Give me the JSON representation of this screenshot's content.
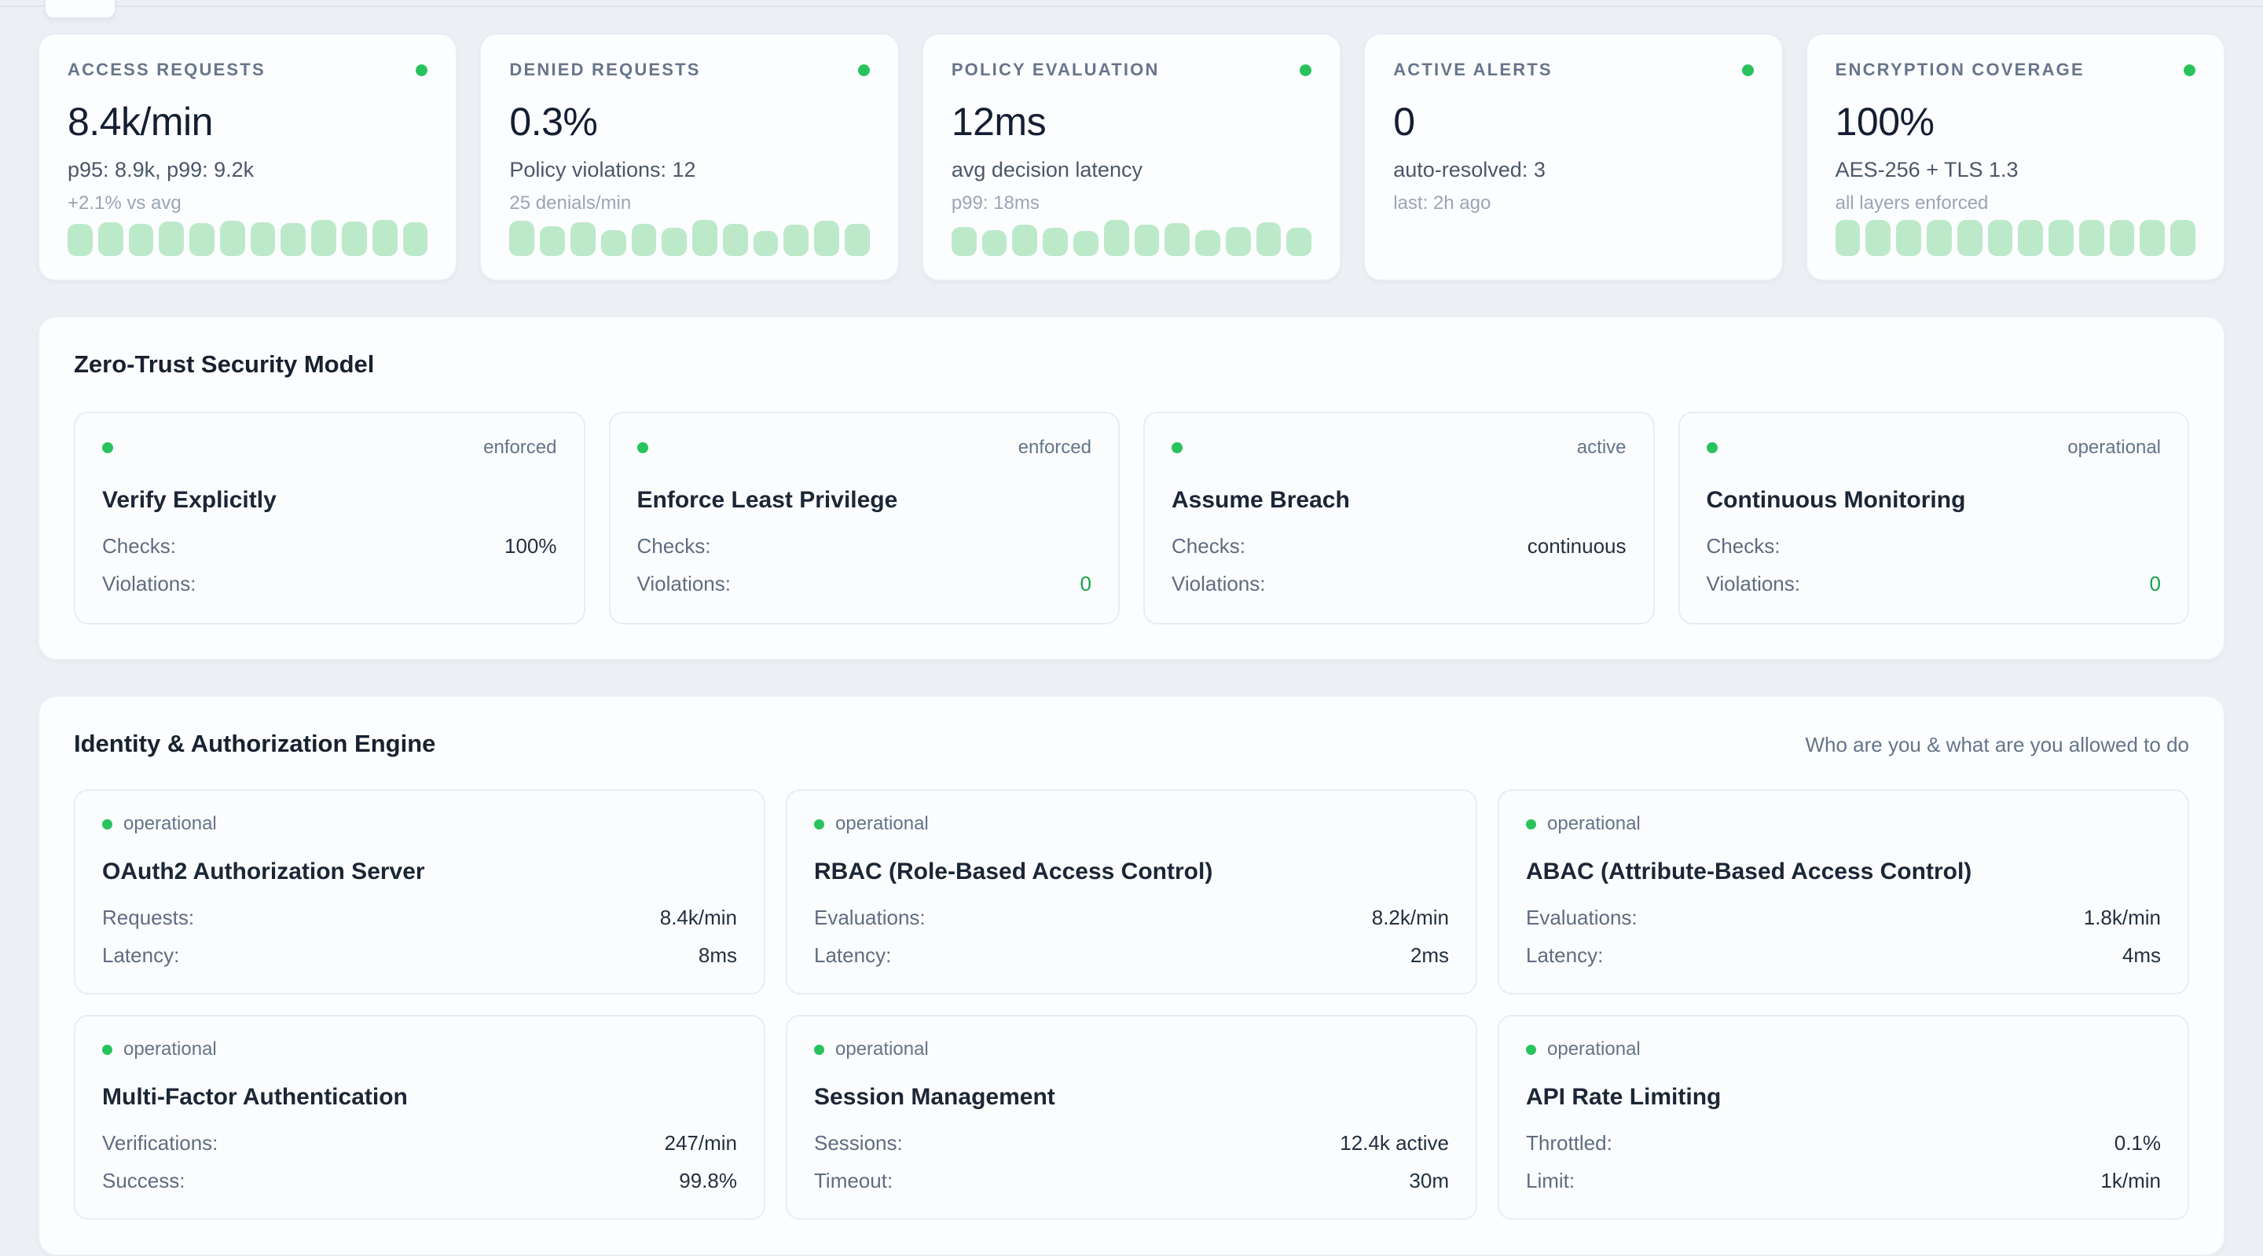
{
  "colors": {
    "page_background": "#edeff4",
    "card_background": "#fcfdfe",
    "accent_green_dot": "#28c35d",
    "sparkline_bar_green": "#bde9cb",
    "value_green": "#16a34a"
  },
  "kpi_cards": [
    {
      "label": "ACCESS REQUESTS",
      "value": "8.4k/min",
      "detail": "p95: 8.9k, p99: 9.2k",
      "sub": "+2.1% vs avg",
      "bars": [
        90,
        93,
        89,
        95,
        91,
        97,
        93,
        91,
        99,
        96,
        100,
        93
      ]
    },
    {
      "label": "DENIED REQUESTS",
      "value": "0.3%",
      "detail": "Policy violations: 12",
      "sub": "25 denials/min",
      "bars": [
        97,
        83,
        93,
        72,
        90,
        79,
        100,
        90,
        69,
        86,
        97,
        90
      ]
    },
    {
      "label": "POLICY EVALUATION",
      "value": "12ms",
      "detail": "avg decision latency",
      "sub": "p99: 18ms",
      "bars": [
        81,
        72,
        88,
        78,
        69,
        100,
        88,
        91,
        72,
        81,
        94,
        78
      ]
    },
    {
      "label": "ACTIVE ALERTS",
      "value": "0",
      "detail": "auto-resolved: 3",
      "sub": "last: 2h ago",
      "bars": []
    },
    {
      "label": "ENCRYPTION COVERAGE",
      "value": "100%",
      "detail": "AES-256 + TLS 1.3",
      "sub": "all layers enforced",
      "bars": [
        100,
        100,
        100,
        100,
        100,
        100,
        100,
        100,
        100,
        100,
        100,
        100
      ]
    }
  ],
  "zero_trust": {
    "title": "Zero-Trust Security Model",
    "cards": [
      {
        "title": "Verify Explicitly",
        "status": "enforced",
        "rows": [
          {
            "label": "Checks:",
            "value": "100%",
            "green": false
          },
          {
            "label": "Violations:",
            "value": "",
            "green": false
          }
        ]
      },
      {
        "title": "Enforce Least Privilege",
        "status": "enforced",
        "rows": [
          {
            "label": "Checks:",
            "value": "",
            "green": false
          },
          {
            "label": "Violations:",
            "value": "0",
            "green": true
          }
        ]
      },
      {
        "title": "Assume Breach",
        "status": "active",
        "rows": [
          {
            "label": "Checks:",
            "value": "continuous",
            "green": false
          },
          {
            "label": "Violations:",
            "value": "",
            "green": false
          }
        ]
      },
      {
        "title": "Continuous Monitoring",
        "status": "operational",
        "rows": [
          {
            "label": "Checks:",
            "value": "",
            "green": false
          },
          {
            "label": "Violations:",
            "value": "0",
            "green": true
          }
        ]
      }
    ]
  },
  "identity": {
    "title": "Identity & Authorization Engine",
    "subtitle": "Who are you & what are you allowed to do",
    "cards": [
      {
        "status": "operational",
        "title": "OAuth2 Authorization Server",
        "rows": [
          {
            "label": "Requests:",
            "value": "8.4k/min"
          },
          {
            "label": "Latency:",
            "value": "8ms"
          }
        ]
      },
      {
        "status": "operational",
        "title": "RBAC (Role-Based Access Control)",
        "rows": [
          {
            "label": "Evaluations:",
            "value": "8.2k/min"
          },
          {
            "label": "Latency:",
            "value": "2ms"
          }
        ]
      },
      {
        "status": "operational",
        "title": "ABAC (Attribute-Based Access Control)",
        "rows": [
          {
            "label": "Evaluations:",
            "value": "1.8k/min"
          },
          {
            "label": "Latency:",
            "value": "4ms"
          }
        ]
      },
      {
        "status": "operational",
        "title": "Multi-Factor Authentication",
        "rows": [
          {
            "label": "Verifications:",
            "value": "247/min"
          },
          {
            "label": "Success:",
            "value": "99.8%"
          }
        ]
      },
      {
        "status": "operational",
        "title": "Session Management",
        "rows": [
          {
            "label": "Sessions:",
            "value": "12.4k active"
          },
          {
            "label": "Timeout:",
            "value": "30m"
          }
        ]
      },
      {
        "status": "operational",
        "title": "API Rate Limiting",
        "rows": [
          {
            "label": "Throttled:",
            "value": "0.1%"
          },
          {
            "label": "Limit:",
            "value": "1k/min"
          }
        ]
      }
    ]
  }
}
